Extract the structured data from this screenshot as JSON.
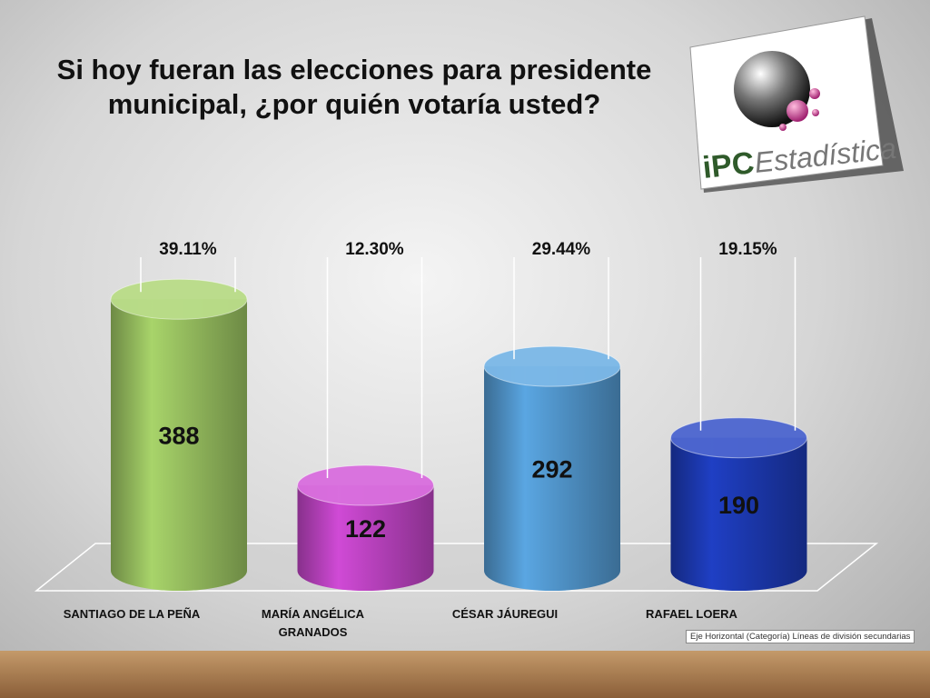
{
  "chart_data": {
    "type": "cylinder",
    "title": "Si hoy fueran las elecciones para presidente municipal, ¿por quién  votaría usted?",
    "categories": [
      "SANTIAGO DE LA PEÑA",
      "MARÍA ANGÉLICA GRANADOS",
      "CÉSAR JÁUREGUI",
      "RAFAEL LOERA"
    ],
    "values": [
      388,
      122,
      292,
      190
    ],
    "colors": [
      "#a8d46a",
      "#d04ad6",
      "#5aa6e2",
      "#1f3fc4"
    ],
    "annotations": [
      "39.11%",
      "12.30%",
      "29.44%",
      "19.15%"
    ],
    "tooltip": "Eje Horizontal (Categoría)  Líneas de división secundarias",
    "logo_prefix": "iPC",
    "logo_text": "Estadística"
  }
}
